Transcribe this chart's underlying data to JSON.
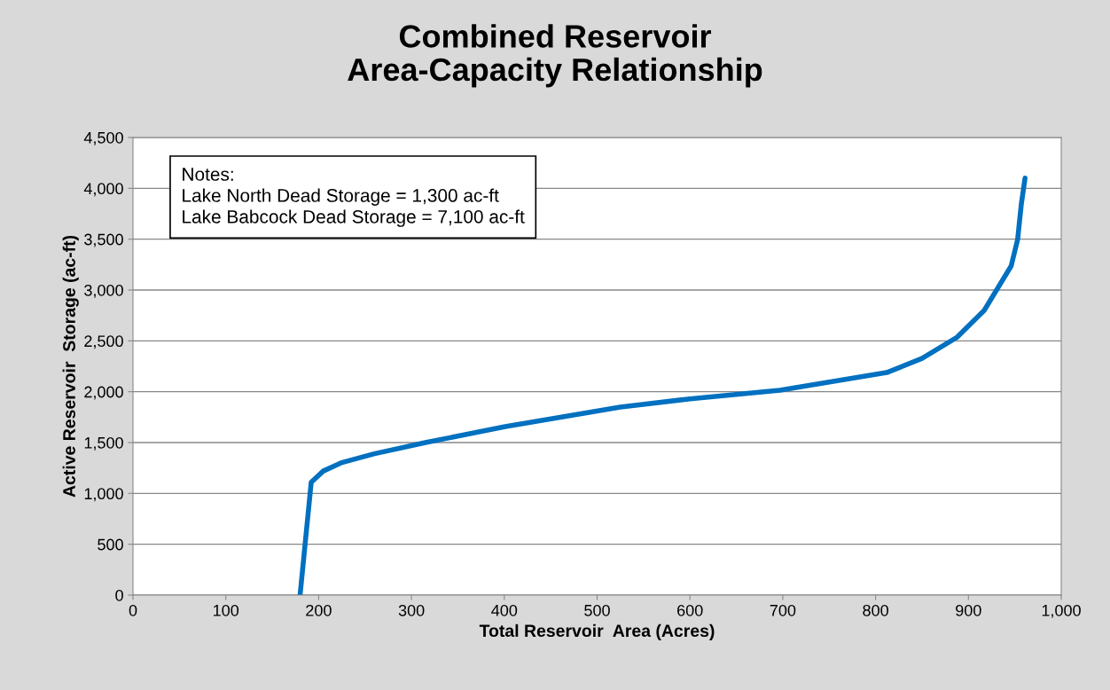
{
  "chart_data": {
    "type": "line",
    "title": "Combined Reservoir\nArea-Capacity Relationship",
    "xlabel": "Total Reservoir  Area (Acres)",
    "ylabel": "Active Reservoir  Storage (ac-ft)",
    "annotations": [
      "Notes:\nLake North Dead Storage = 1,300 ac-ft\nLake Babcock Dead Storage = 7,100 ac-ft"
    ],
    "series": [
      {
        "color": "#0070c0",
        "x": [
          180,
          192,
          205,
          224,
          260,
          315,
          401,
          525,
          600,
          697,
          812,
          850,
          888,
          917,
          946,
          953,
          957,
          961
        ],
        "values": [
          0,
          1110,
          1220,
          1300,
          1390,
          1500,
          1657,
          1848,
          1930,
          2014,
          2188,
          2328,
          2537,
          2799,
          3235,
          3496,
          3845,
          4100
        ]
      }
    ],
    "xlim": [
      0,
      1000
    ],
    "xticks": [
      0,
      100,
      200,
      300,
      400,
      500,
      600,
      700,
      800,
      900,
      {
        "value": 1000,
        "label": "1,000"
      }
    ],
    "ylim": [
      0,
      4500
    ],
    "yticks": [
      0,
      500,
      {
        "value": 1000,
        "label": "1,000"
      },
      {
        "value": 1500,
        "label": "1,500"
      },
      {
        "value": 2000,
        "label": "2,000"
      },
      {
        "value": 2500,
        "label": "2,500"
      },
      {
        "value": 3000,
        "label": "3,000"
      },
      {
        "value": 3500,
        "label": "3,500"
      },
      {
        "value": 4000,
        "label": "4,000"
      },
      {
        "value": 4500,
        "label": "4,500"
      }
    ],
    "grid": "y",
    "legend": false
  }
}
